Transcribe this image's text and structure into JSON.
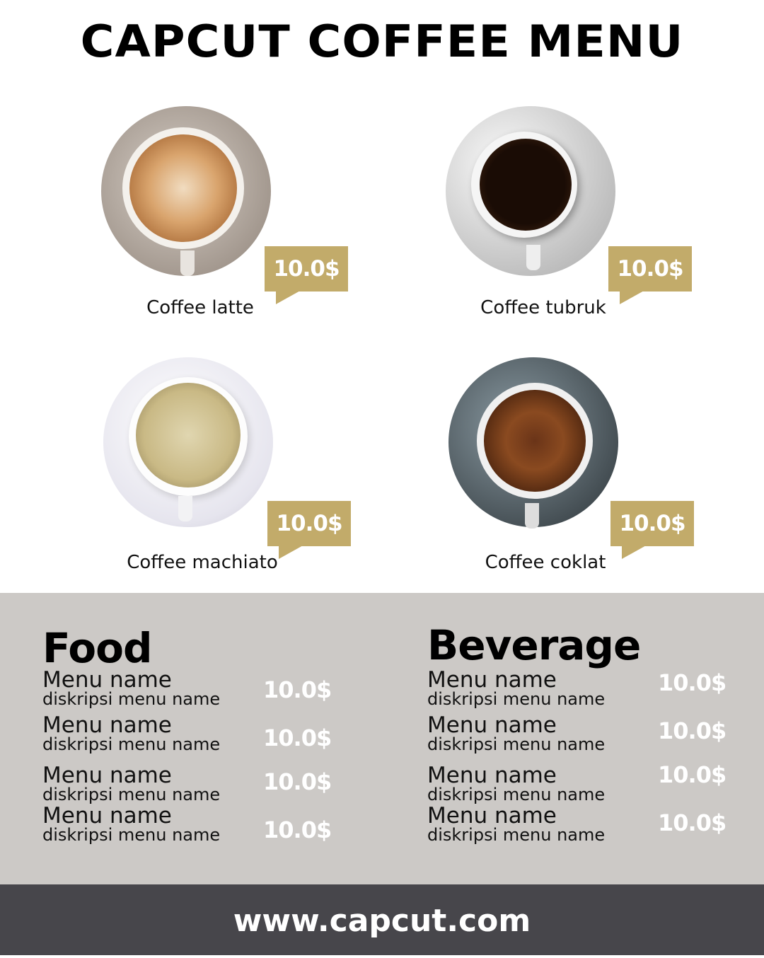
{
  "title": "CAPCUT COFFEE MENU",
  "colors": {
    "accent_gold": "#c2ab6a",
    "panel_gray": "#ccc9c6",
    "footer_dark": "#47464b"
  },
  "featured": [
    {
      "name": "Coffee latte",
      "price": "10.0$"
    },
    {
      "name": "Coffee tubruk",
      "price": "10.0$"
    },
    {
      "name": "Coffee machiato",
      "price": "10.0$"
    },
    {
      "name": "Coffee coklat",
      "price": "10.0$"
    }
  ],
  "food": {
    "title": "Food",
    "items": [
      {
        "name": "Menu name",
        "desc": "diskripsi menu name",
        "price": "10.0$"
      },
      {
        "name": "Menu name",
        "desc": "diskripsi menu name",
        "price": "10.0$"
      },
      {
        "name": "Menu name",
        "desc": "diskripsi menu name",
        "price": "10.0$"
      },
      {
        "name": "Menu name",
        "desc": "diskripsi menu name",
        "price": "10.0$"
      }
    ]
  },
  "beverage": {
    "title": "Beverage",
    "items": [
      {
        "name": "Menu name",
        "desc": "diskripsi menu name",
        "price": "10.0$"
      },
      {
        "name": "Menu name",
        "desc": "diskripsi menu name",
        "price": "10.0$"
      },
      {
        "name": "Menu name",
        "desc": "diskripsi menu name",
        "price": "10.0$"
      },
      {
        "name": "Menu name",
        "desc": "diskripsi menu name",
        "price": "10.0$"
      }
    ]
  },
  "footer": {
    "url": "www.capcut.com"
  }
}
